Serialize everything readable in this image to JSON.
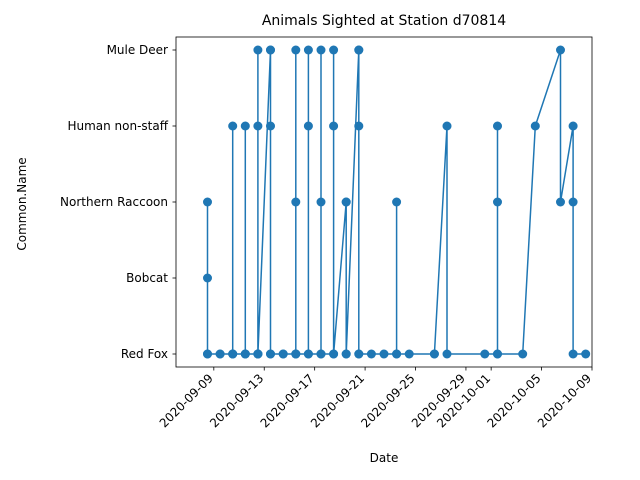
{
  "chart_data": {
    "type": "line",
    "title": "Animals Sighted at Station d70814",
    "xlabel": "Date",
    "ylabel": "Common.Name",
    "color": "#1f77b4",
    "marker": "circle",
    "grid": false,
    "legend": "none",
    "categories": [
      "Red Fox",
      "Bobcat",
      "Northern Raccoon",
      "Human non-staff",
      "Mule Deer"
    ],
    "xlim": [
      "2020-09-06",
      "2020-10-09"
    ],
    "xticks": [
      "2020-09-09",
      "2020-09-13",
      "2020-09-17",
      "2020-09-21",
      "2020-09-25",
      "2020-09-29",
      "2020-10-01",
      "2020-10-05",
      "2020-10-09"
    ],
    "series": [
      {
        "points": [
          {
            "x": "2020-09-08",
            "y": "Red Fox"
          },
          {
            "x": "2020-09-08",
            "y": "Northern Raccoon"
          },
          {
            "x": "2020-09-08",
            "y": "Bobcat"
          },
          {
            "x": "2020-09-08",
            "y": "Red Fox"
          },
          {
            "x": "2020-09-09",
            "y": "Red Fox"
          },
          {
            "x": "2020-09-09",
            "y": "Red Fox"
          },
          {
            "x": "2020-09-10",
            "y": "Red Fox"
          },
          {
            "x": "2020-09-10",
            "y": "Human non-staff"
          },
          {
            "x": "2020-09-10",
            "y": "Red Fox"
          },
          {
            "x": "2020-09-10",
            "y": "Red Fox"
          },
          {
            "x": "2020-09-11",
            "y": "Red Fox"
          },
          {
            "x": "2020-09-11",
            "y": "Human non-staff"
          },
          {
            "x": "2020-09-11",
            "y": "Red Fox"
          },
          {
            "x": "2020-09-11",
            "y": "Red Fox"
          },
          {
            "x": "2020-09-12",
            "y": "Red Fox"
          },
          {
            "x": "2020-09-12",
            "y": "Mule Deer"
          },
          {
            "x": "2020-09-12",
            "y": "Red Fox"
          },
          {
            "x": "2020-09-12",
            "y": "Human non-staff"
          },
          {
            "x": "2020-09-12",
            "y": "Red Fox"
          },
          {
            "x": "2020-09-12",
            "y": "Red Fox"
          },
          {
            "x": "2020-09-13",
            "y": "Mule Deer"
          },
          {
            "x": "2020-09-13",
            "y": "Mule Deer"
          },
          {
            "x": "2020-09-13",
            "y": "Human non-staff"
          },
          {
            "x": "2020-09-13",
            "y": "Red Fox"
          },
          {
            "x": "2020-09-13",
            "y": "Red Fox"
          },
          {
            "x": "2020-09-14",
            "y": "Red Fox"
          },
          {
            "x": "2020-09-14",
            "y": "Red Fox"
          },
          {
            "x": "2020-09-15",
            "y": "Red Fox"
          },
          {
            "x": "2020-09-15",
            "y": "Mule Deer"
          },
          {
            "x": "2020-09-15",
            "y": "Northern Raccoon"
          },
          {
            "x": "2020-09-15",
            "y": "Red Fox"
          },
          {
            "x": "2020-09-15",
            "y": "Red Fox"
          },
          {
            "x": "2020-09-16",
            "y": "Red Fox"
          },
          {
            "x": "2020-09-16",
            "y": "Mule Deer"
          },
          {
            "x": "2020-09-16",
            "y": "Human non-staff"
          },
          {
            "x": "2020-09-16",
            "y": "Red Fox"
          },
          {
            "x": "2020-09-17",
            "y": "Red Fox"
          },
          {
            "x": "2020-09-17",
            "y": "Mule Deer"
          },
          {
            "x": "2020-09-17",
            "y": "Northern Raccoon"
          },
          {
            "x": "2020-09-17",
            "y": "Red Fox"
          },
          {
            "x": "2020-09-18",
            "y": "Red Fox"
          },
          {
            "x": "2020-09-18",
            "y": "Mule Deer"
          },
          {
            "x": "2020-09-18",
            "y": "Human non-staff"
          },
          {
            "x": "2020-09-18",
            "y": "Red Fox"
          },
          {
            "x": "2020-09-19",
            "y": "Northern Raccoon"
          },
          {
            "x": "2020-09-19",
            "y": "Northern Raccoon"
          },
          {
            "x": "2020-09-19",
            "y": "Red Fox"
          },
          {
            "x": "2020-09-19",
            "y": "Red Fox"
          },
          {
            "x": "2020-09-20",
            "y": "Mule Deer"
          },
          {
            "x": "2020-09-20",
            "y": "Mule Deer"
          },
          {
            "x": "2020-09-20",
            "y": "Human non-staff"
          },
          {
            "x": "2020-09-20",
            "y": "Red Fox"
          },
          {
            "x": "2020-09-20",
            "y": "Red Fox"
          },
          {
            "x": "2020-09-21",
            "y": "Red Fox"
          },
          {
            "x": "2020-09-22",
            "y": "Red Fox"
          },
          {
            "x": "2020-09-23",
            "y": "Red Fox"
          },
          {
            "x": "2020-09-23",
            "y": "Northern Raccoon"
          },
          {
            "x": "2020-09-23",
            "y": "Red Fox"
          },
          {
            "x": "2020-09-24",
            "y": "Red Fox"
          },
          {
            "x": "2020-09-26",
            "y": "Red Fox"
          },
          {
            "x": "2020-09-26",
            "y": "Red Fox"
          },
          {
            "x": "2020-09-27",
            "y": "Human non-staff"
          },
          {
            "x": "2020-09-27",
            "y": "Red Fox"
          },
          {
            "x": "2020-09-30",
            "y": "Red Fox"
          },
          {
            "x": "2020-10-01",
            "y": "Red Fox"
          },
          {
            "x": "2020-10-01",
            "y": "Northern Raccoon"
          },
          {
            "x": "2020-10-01",
            "y": "Human non-staff"
          },
          {
            "x": "2020-10-01",
            "y": "Red Fox"
          },
          {
            "x": "2020-10-03",
            "y": "Red Fox"
          },
          {
            "x": "2020-10-04",
            "y": "Human non-staff"
          },
          {
            "x": "2020-10-06",
            "y": "Mule Deer"
          },
          {
            "x": "2020-10-06",
            "y": "Northern Raccoon"
          },
          {
            "x": "2020-10-07",
            "y": "Human non-staff"
          },
          {
            "x": "2020-10-07",
            "y": "Northern Raccoon"
          },
          {
            "x": "2020-10-07",
            "y": "Red Fox"
          },
          {
            "x": "2020-10-08",
            "y": "Red Fox"
          }
        ]
      }
    ]
  }
}
